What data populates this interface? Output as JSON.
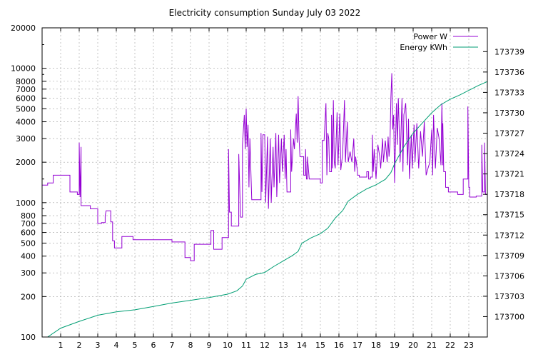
{
  "chart_data": {
    "type": "line",
    "title": "Electricity consumption Sunday July 03 2022",
    "grid": true,
    "legend_position": "top-right",
    "x": {
      "range": [
        0,
        24
      ],
      "ticks": [
        1,
        2,
        3,
        4,
        5,
        6,
        7,
        8,
        9,
        10,
        11,
        12,
        13,
        14,
        15,
        16,
        17,
        18,
        19,
        20,
        21,
        22,
        23
      ],
      "tick_labels": [
        "1",
        "2",
        "3",
        "4",
        "5",
        "6",
        "7",
        "8",
        "9",
        "10",
        "11",
        "12",
        "13",
        "14",
        "15",
        "16",
        "17",
        "18",
        "19",
        "20",
        "21",
        "22",
        "23"
      ]
    },
    "y_left": {
      "scale": "log",
      "range": [
        100,
        20000
      ],
      "ticks": [
        100,
        200,
        300,
        400,
        500,
        600,
        700,
        800,
        1000,
        2000,
        3000,
        4000,
        5000,
        6000,
        7000,
        8000,
        10000,
        20000
      ],
      "tick_labels": [
        "100",
        "200",
        "300",
        "400",
        "500",
        "600",
        "700",
        "800",
        "1000",
        "2000",
        "3000",
        "4000",
        "5000",
        "6000",
        "7000",
        "8000",
        "10000",
        "20000"
      ]
    },
    "y_right": {
      "scale": "linear",
      "range": [
        173697,
        173742.5
      ],
      "ticks": [
        173700,
        173703,
        173706,
        173709,
        173712,
        173715,
        173718,
        173721,
        173724,
        173727,
        173730,
        173733,
        173736,
        173739
      ],
      "tick_labels": [
        "173700",
        "173703",
        "173706",
        "173709",
        "173712",
        "173715",
        "173718",
        "173721",
        "173724",
        "173727",
        "173730",
        "173733",
        "173736",
        "173739"
      ]
    },
    "series": [
      {
        "name": "Power W",
        "color": "#9400d3",
        "axis": "left",
        "style": "steps",
        "points": [
          [
            0.0,
            1350
          ],
          [
            0.3,
            1350
          ],
          [
            0.3,
            1400
          ],
          [
            0.6,
            1400
          ],
          [
            0.6,
            1600
          ],
          [
            1.5,
            1600
          ],
          [
            1.5,
            1200
          ],
          [
            1.9,
            1200
          ],
          [
            1.9,
            1150
          ],
          [
            2.0,
            1150
          ],
          [
            2.0,
            2800
          ],
          [
            2.05,
            1100
          ],
          [
            2.1,
            2600
          ],
          [
            2.1,
            950
          ],
          [
            2.6,
            950
          ],
          [
            2.6,
            900
          ],
          [
            3.0,
            900
          ],
          [
            3.0,
            700
          ],
          [
            3.2,
            700
          ],
          [
            3.2,
            710
          ],
          [
            3.4,
            710
          ],
          [
            3.4,
            800
          ],
          [
            3.45,
            870
          ],
          [
            3.7,
            870
          ],
          [
            3.7,
            720
          ],
          [
            3.8,
            720
          ],
          [
            3.8,
            520
          ],
          [
            3.9,
            520
          ],
          [
            3.9,
            460
          ],
          [
            4.3,
            460
          ],
          [
            4.3,
            560
          ],
          [
            4.9,
            560
          ],
          [
            4.9,
            530
          ],
          [
            7.0,
            530
          ],
          [
            7.0,
            510
          ],
          [
            7.7,
            510
          ],
          [
            7.7,
            390
          ],
          [
            8.0,
            390
          ],
          [
            8.0,
            370
          ],
          [
            8.2,
            370
          ],
          [
            8.2,
            490
          ],
          [
            9.1,
            490
          ],
          [
            9.1,
            620
          ],
          [
            9.25,
            620
          ],
          [
            9.25,
            450
          ],
          [
            9.7,
            450
          ],
          [
            9.7,
            550
          ],
          [
            10.05,
            550
          ],
          [
            10.05,
            2500
          ],
          [
            10.1,
            850
          ],
          [
            10.2,
            850
          ],
          [
            10.2,
            670
          ],
          [
            10.6,
            670
          ],
          [
            10.6,
            2300
          ],
          [
            10.7,
            780
          ],
          [
            10.8,
            780
          ],
          [
            10.8,
            2700
          ],
          [
            10.9,
            4500
          ],
          [
            10.95,
            2500
          ],
          [
            11.0,
            5000
          ],
          [
            11.05,
            2600
          ],
          [
            11.1,
            3800
          ],
          [
            11.15,
            1300
          ],
          [
            11.2,
            3000
          ],
          [
            11.3,
            1050
          ],
          [
            11.8,
            1050
          ],
          [
            11.8,
            3300
          ],
          [
            11.85,
            1200
          ],
          [
            11.9,
            3200
          ],
          [
            12.0,
            3200
          ],
          [
            12.05,
            1000
          ],
          [
            12.15,
            3100
          ],
          [
            12.2,
            900
          ],
          [
            12.3,
            3000
          ],
          [
            12.35,
            1000
          ],
          [
            12.45,
            2600
          ],
          [
            12.5,
            1300
          ],
          [
            12.6,
            3300
          ],
          [
            12.65,
            1100
          ],
          [
            12.75,
            3200
          ],
          [
            12.8,
            1400
          ],
          [
            12.9,
            3000
          ],
          [
            12.95,
            1700
          ],
          [
            13.05,
            3200
          ],
          [
            13.1,
            1500
          ],
          [
            13.15,
            2500
          ],
          [
            13.2,
            1200
          ],
          [
            13.4,
            1200
          ],
          [
            13.4,
            3500
          ],
          [
            13.45,
            1700
          ],
          [
            13.55,
            3000
          ],
          [
            13.6,
            2500
          ],
          [
            13.7,
            4600
          ],
          [
            13.75,
            2800
          ],
          [
            13.8,
            6200
          ],
          [
            13.85,
            3000
          ],
          [
            13.9,
            2200
          ],
          [
            14.1,
            2200
          ],
          [
            14.1,
            1600
          ],
          [
            14.2,
            1600
          ],
          [
            14.2,
            2500
          ],
          [
            14.25,
            1500
          ],
          [
            14.3,
            1500
          ],
          [
            14.3,
            2200
          ],
          [
            14.4,
            1500
          ],
          [
            15.0,
            1500
          ],
          [
            15.0,
            1400
          ],
          [
            15.1,
            1400
          ],
          [
            15.1,
            2900
          ],
          [
            15.2,
            2900
          ],
          [
            15.3,
            5500
          ],
          [
            15.35,
            1600
          ],
          [
            15.4,
            3300
          ],
          [
            15.45,
            3000
          ],
          [
            15.5,
            1700
          ],
          [
            15.6,
            1700
          ],
          [
            15.6,
            4500
          ],
          [
            15.65,
            1800
          ],
          [
            15.7,
            5800
          ],
          [
            15.75,
            2000
          ],
          [
            15.8,
            1800
          ],
          [
            15.9,
            4700
          ],
          [
            15.95,
            1900
          ],
          [
            16.05,
            4600
          ],
          [
            16.1,
            1750
          ],
          [
            16.2,
            2300
          ],
          [
            16.3,
            5800
          ],
          [
            16.35,
            2000
          ],
          [
            16.45,
            4000
          ],
          [
            16.5,
            2000
          ],
          [
            16.6,
            2400
          ],
          [
            16.7,
            2000
          ],
          [
            16.8,
            3000
          ],
          [
            16.85,
            1700
          ],
          [
            16.9,
            2200
          ],
          [
            17.0,
            1700
          ],
          [
            17.0,
            1600
          ],
          [
            17.1,
            1600
          ],
          [
            17.1,
            1550
          ],
          [
            17.5,
            1550
          ],
          [
            17.5,
            1700
          ],
          [
            17.6,
            1700
          ],
          [
            17.6,
            1500
          ],
          [
            17.7,
            1500
          ],
          [
            17.7,
            1550
          ],
          [
            17.8,
            1550
          ],
          [
            17.8,
            3200
          ],
          [
            17.85,
            1700
          ],
          [
            17.9,
            2500
          ],
          [
            18.0,
            1500
          ],
          [
            18.1,
            2700
          ],
          [
            18.2,
            2200
          ],
          [
            18.25,
            1800
          ],
          [
            18.35,
            3000
          ],
          [
            18.4,
            2000
          ],
          [
            18.5,
            2900
          ],
          [
            18.6,
            2000
          ],
          [
            18.65,
            3100
          ],
          [
            18.7,
            2200
          ],
          [
            18.75,
            2700
          ],
          [
            18.8,
            6000
          ],
          [
            18.85,
            9200
          ],
          [
            18.9,
            3500
          ],
          [
            18.95,
            4500
          ],
          [
            19.0,
            1400
          ],
          [
            19.1,
            5500
          ],
          [
            19.15,
            2700
          ],
          [
            19.2,
            6000
          ],
          [
            19.3,
            2000
          ],
          [
            19.4,
            6000
          ],
          [
            19.45,
            1700
          ],
          [
            19.5,
            4500
          ],
          [
            19.6,
            5500
          ],
          [
            19.7,
            1900
          ],
          [
            19.75,
            4200
          ],
          [
            19.8,
            1500
          ],
          [
            19.9,
            3200
          ],
          [
            19.95,
            1800
          ],
          [
            20.05,
            3800
          ],
          [
            20.1,
            2000
          ],
          [
            20.2,
            3900
          ],
          [
            20.3,
            1800
          ],
          [
            20.4,
            3400
          ],
          [
            20.5,
            2200
          ],
          [
            20.6,
            4000
          ],
          [
            20.7,
            1600
          ],
          [
            20.8,
            1800
          ],
          [
            20.9,
            2000
          ],
          [
            21.0,
            3500
          ],
          [
            21.05,
            1600
          ],
          [
            21.1,
            4500
          ],
          [
            21.2,
            1800
          ],
          [
            21.3,
            3600
          ],
          [
            21.4,
            3000
          ],
          [
            21.5,
            1900
          ],
          [
            21.55,
            5500
          ],
          [
            21.6,
            1900
          ],
          [
            21.6,
            3900
          ],
          [
            21.65,
            1700
          ],
          [
            21.75,
            1700
          ],
          [
            21.75,
            1300
          ],
          [
            21.9,
            1300
          ],
          [
            21.9,
            1200
          ],
          [
            22.4,
            1200
          ],
          [
            22.4,
            1150
          ],
          [
            22.7,
            1150
          ],
          [
            22.7,
            1500
          ],
          [
            22.95,
            1500
          ],
          [
            22.95,
            5200
          ],
          [
            23.0,
            1300
          ],
          [
            23.05,
            1300
          ],
          [
            23.05,
            1100
          ],
          [
            23.4,
            1100
          ],
          [
            23.4,
            1120
          ],
          [
            23.7,
            1120
          ],
          [
            23.7,
            2700
          ],
          [
            23.75,
            1200
          ],
          [
            23.85,
            1200
          ],
          [
            23.85,
            2800
          ],
          [
            23.9,
            1150
          ],
          [
            24.0,
            1150
          ]
        ]
      },
      {
        "name": "Energy KWh",
        "color": "#009e73",
        "axis": "right",
        "style": "line",
        "points": [
          [
            0.3,
            173697.0
          ],
          [
            1.0,
            173698.3
          ],
          [
            2.0,
            173699.3
          ],
          [
            3.0,
            173700.2
          ],
          [
            4.0,
            173700.7
          ],
          [
            5.0,
            173701.0
          ],
          [
            6.0,
            173701.5
          ],
          [
            7.0,
            173702.0
          ],
          [
            8.0,
            173702.4
          ],
          [
            9.0,
            173702.8
          ],
          [
            10.0,
            173703.3
          ],
          [
            10.5,
            173703.8
          ],
          [
            10.8,
            173704.5
          ],
          [
            11.0,
            173705.5
          ],
          [
            11.5,
            173706.2
          ],
          [
            12.0,
            173706.5
          ],
          [
            12.5,
            173707.4
          ],
          [
            13.0,
            173708.2
          ],
          [
            13.5,
            173709.0
          ],
          [
            13.8,
            173709.6
          ],
          [
            14.0,
            173710.8
          ],
          [
            14.5,
            173711.6
          ],
          [
            15.0,
            173712.2
          ],
          [
            15.4,
            173713.0
          ],
          [
            15.8,
            173714.5
          ],
          [
            16.2,
            173715.6
          ],
          [
            16.5,
            173717.0
          ],
          [
            17.0,
            173718.0
          ],
          [
            17.5,
            173718.8
          ],
          [
            18.0,
            173719.4
          ],
          [
            18.5,
            173720.2
          ],
          [
            18.8,
            173721.2
          ],
          [
            19.0,
            173722.5
          ],
          [
            19.5,
            173725.0
          ],
          [
            20.0,
            173727.0
          ],
          [
            20.5,
            173728.5
          ],
          [
            21.0,
            173730.0
          ],
          [
            21.5,
            173731.2
          ],
          [
            22.0,
            173732.0
          ],
          [
            22.5,
            173732.6
          ],
          [
            23.0,
            173733.3
          ],
          [
            23.5,
            173734.0
          ],
          [
            24.0,
            173734.6
          ]
        ]
      }
    ]
  }
}
